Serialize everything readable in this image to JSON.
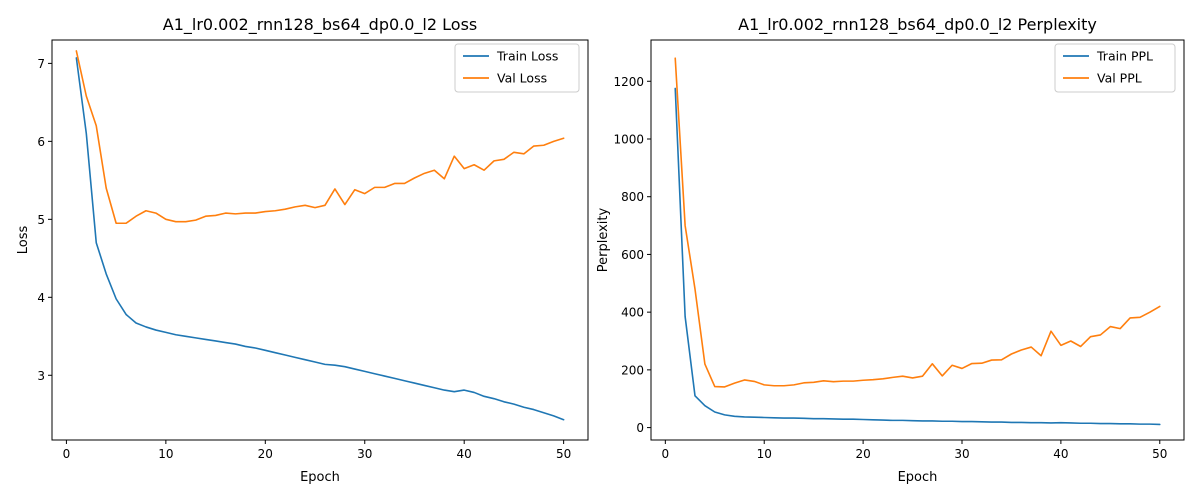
{
  "chart_data": [
    {
      "type": "line",
      "title": "A1_lr0.002_rnn128_bs64_dp0.0_l2 Loss",
      "xlabel": "Epoch",
      "ylabel": "Loss",
      "xlim": [
        -1.45,
        52.45
      ],
      "ylim": [
        2.17,
        7.3
      ],
      "xticks": [
        0,
        10,
        20,
        30,
        40,
        50
      ],
      "yticks": [
        3,
        4,
        5,
        6,
        7
      ],
      "legend": "top-right",
      "grid": false,
      "x": [
        1,
        2,
        3,
        4,
        5,
        6,
        7,
        8,
        9,
        10,
        11,
        12,
        13,
        14,
        15,
        16,
        17,
        18,
        19,
        20,
        21,
        22,
        23,
        24,
        25,
        26,
        27,
        28,
        29,
        30,
        31,
        32,
        33,
        34,
        35,
        36,
        37,
        38,
        39,
        40,
        41,
        42,
        43,
        44,
        45,
        46,
        47,
        48,
        49,
        50
      ],
      "series": [
        {
          "name": "Train Loss",
          "color": "#1f77b4",
          "values": [
            7.07,
            6.1,
            4.7,
            4.3,
            3.98,
            3.78,
            3.67,
            3.62,
            3.58,
            3.55,
            3.52,
            3.5,
            3.48,
            3.46,
            3.44,
            3.42,
            3.4,
            3.37,
            3.35,
            3.32,
            3.29,
            3.26,
            3.23,
            3.2,
            3.17,
            3.14,
            3.13,
            3.11,
            3.08,
            3.05,
            3.02,
            2.99,
            2.96,
            2.93,
            2.9,
            2.87,
            2.84,
            2.81,
            2.79,
            2.81,
            2.78,
            2.73,
            2.7,
            2.66,
            2.63,
            2.59,
            2.56,
            2.52,
            2.48,
            2.43
          ]
        },
        {
          "name": "Val Loss",
          "color": "#ff7f0e",
          "values": [
            7.16,
            6.58,
            6.2,
            5.4,
            4.95,
            4.95,
            5.04,
            5.11,
            5.08,
            5.0,
            4.97,
            4.97,
            4.99,
            5.04,
            5.05,
            5.08,
            5.07,
            5.08,
            5.08,
            5.1,
            5.11,
            5.13,
            5.16,
            5.18,
            5.15,
            5.18,
            5.39,
            5.19,
            5.38,
            5.33,
            5.41,
            5.41,
            5.46,
            5.46,
            5.53,
            5.59,
            5.63,
            5.52,
            5.81,
            5.65,
            5.7,
            5.63,
            5.75,
            5.77,
            5.86,
            5.84,
            5.94,
            5.95,
            6.0,
            6.04
          ]
        }
      ]
    },
    {
      "type": "line",
      "title": "A1_lr0.002_rnn128_bs64_dp0.0_l2 Perplexity",
      "xlabel": "Epoch",
      "ylabel": "Perplexity",
      "xlim": [
        -1.45,
        52.45
      ],
      "ylim": [
        -43,
        1343
      ],
      "xticks": [
        0,
        10,
        20,
        30,
        40,
        50
      ],
      "yticks": [
        0,
        200,
        400,
        600,
        800,
        1000,
        1200
      ],
      "legend": "top-right",
      "grid": false,
      "x": [
        1,
        2,
        3,
        4,
        5,
        6,
        7,
        8,
        9,
        10,
        11,
        12,
        13,
        14,
        15,
        16,
        17,
        18,
        19,
        20,
        21,
        22,
        23,
        24,
        25,
        26,
        27,
        28,
        29,
        30,
        31,
        32,
        33,
        34,
        35,
        36,
        37,
        38,
        39,
        40,
        41,
        42,
        43,
        44,
        45,
        46,
        47,
        48,
        49,
        50
      ],
      "series": [
        {
          "name": "Train PPL",
          "color": "#1f77b4",
          "values": [
            1175,
            385,
            110,
            76,
            54,
            44,
            39,
            37,
            36,
            35,
            34,
            33,
            33,
            32,
            31,
            31,
            30,
            29,
            29,
            28,
            27,
            26,
            25,
            25,
            24,
            23,
            23,
            22,
            22,
            21,
            21,
            20,
            19,
            19,
            18,
            18,
            17,
            17,
            16,
            17,
            16,
            15,
            15,
            14,
            14,
            13,
            13,
            12,
            12,
            11
          ]
        },
        {
          "name": "Val PPL",
          "color": "#ff7f0e",
          "values": [
            1280,
            700,
            480,
            220,
            142,
            141,
            154,
            165,
            160,
            148,
            145,
            145,
            148,
            155,
            157,
            162,
            159,
            161,
            161,
            164,
            166,
            169,
            174,
            178,
            172,
            178,
            221,
            179,
            216,
            205,
            222,
            223,
            234,
            235,
            255,
            269,
            279,
            249,
            334,
            285,
            300,
            281,
            315,
            321,
            350,
            343,
            380,
            382,
            400,
            420
          ]
        }
      ]
    }
  ]
}
